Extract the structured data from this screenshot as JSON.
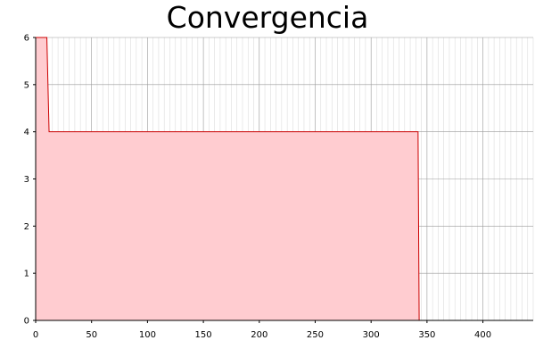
{
  "chart_data": {
    "type": "area",
    "title": "Convergencia",
    "xlabel": "",
    "ylabel": "",
    "xlim": [
      0,
      445
    ],
    "ylim": [
      0,
      6
    ],
    "x_ticks": [
      0,
      50,
      100,
      150,
      200,
      250,
      300,
      350,
      400
    ],
    "y_ticks": [
      0,
      1,
      2,
      3,
      4,
      5,
      6
    ],
    "x_minor_step": 5,
    "grid": true,
    "legend": "none",
    "series": [
      {
        "points": [
          [
            0,
            6
          ],
          [
            10,
            6
          ],
          [
            12,
            4
          ],
          [
            342,
            4
          ],
          [
            343,
            0
          ]
        ],
        "line_color": "#cc0000",
        "fill_color": "#ffccd0"
      }
    ],
    "colors": {
      "major_grid": "#999999",
      "minor_grid": "#dddddd",
      "axis": "#000000"
    }
  }
}
